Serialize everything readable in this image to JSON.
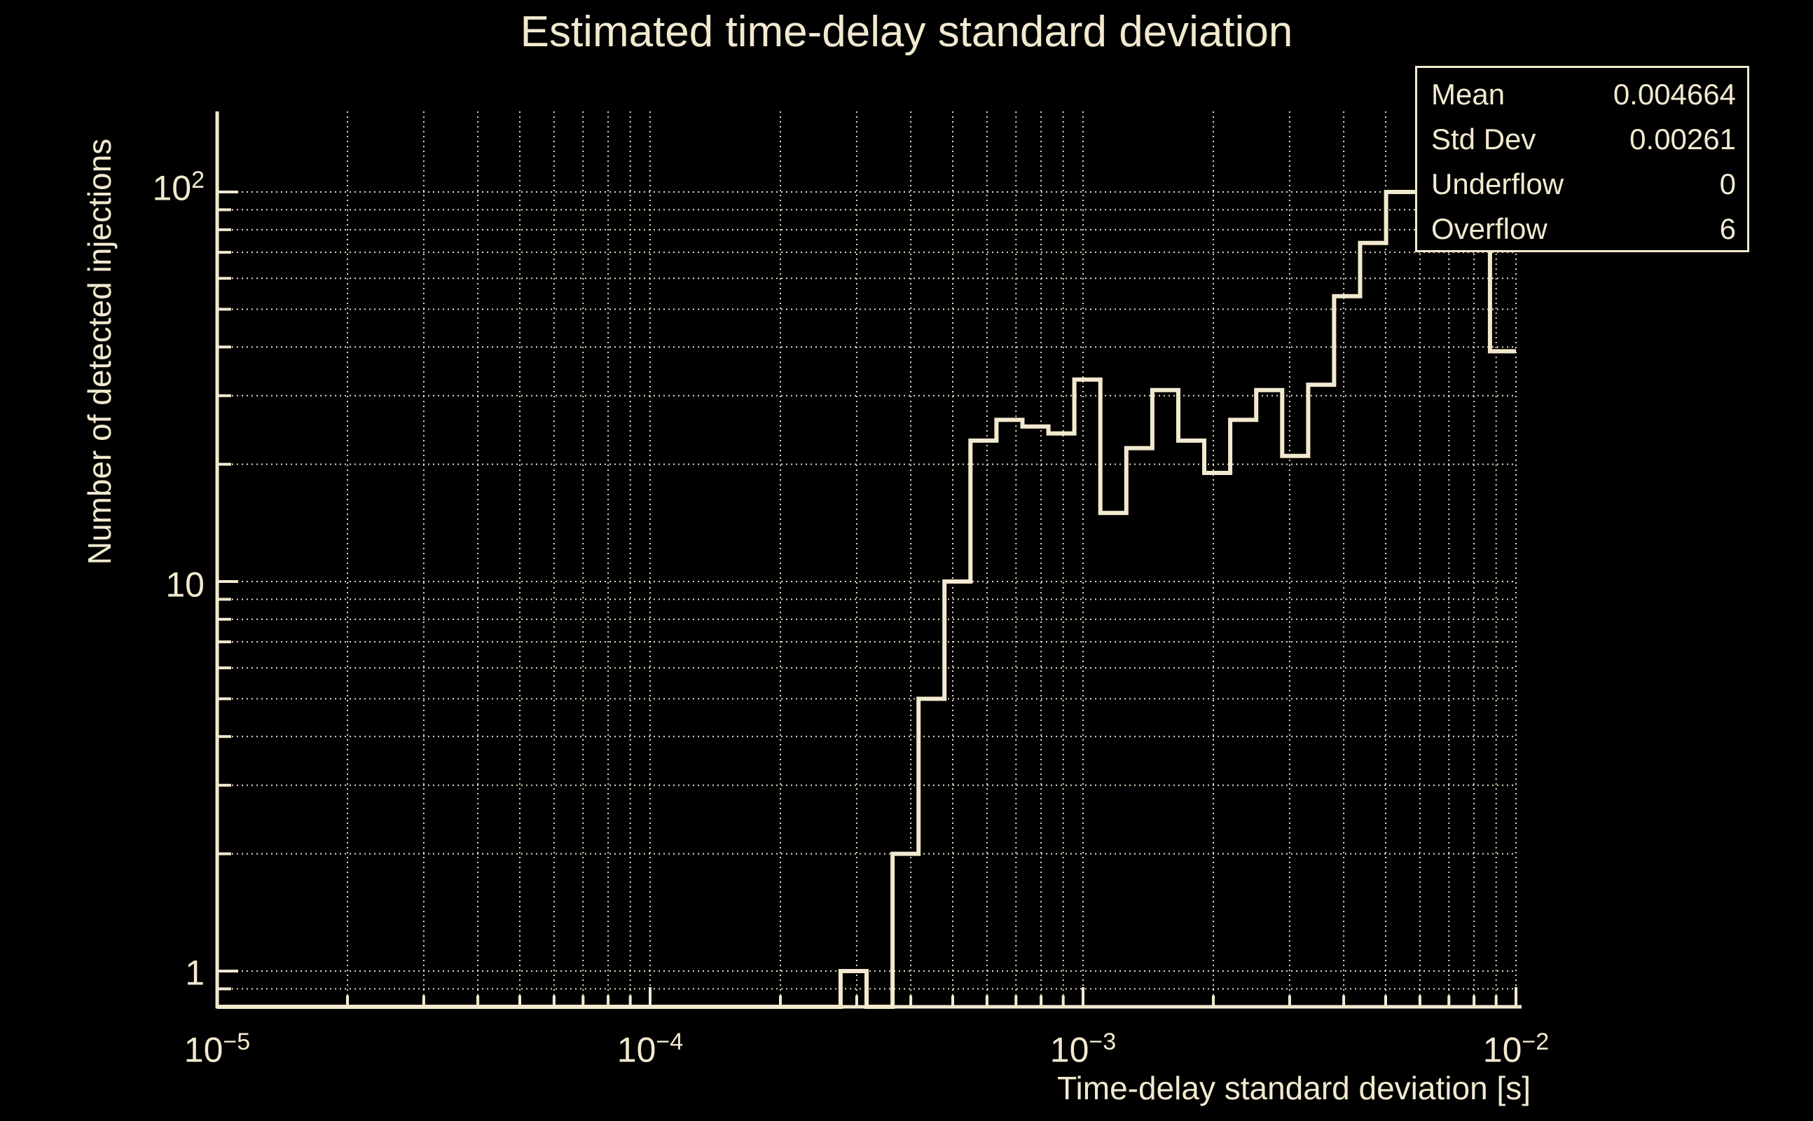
{
  "colors": {
    "background": "#000000",
    "foreground": "#f2e9cf"
  },
  "chart_data": {
    "type": "bar",
    "subtype": "step-histogram-log-log",
    "title": "Estimated time-delay standard deviation",
    "xlabel": "Time-delay standard deviation [s]",
    "ylabel": "Number of detected injections",
    "x_min": 1e-05,
    "x_max": 0.01,
    "x_scale": "log",
    "y_scale": "log",
    "ylim": [
      0.8,
      161
    ],
    "n_bins": 50,
    "bins_log_uniform": true,
    "counts": [
      0,
      0,
      0,
      0,
      0,
      0,
      0,
      0,
      0,
      0,
      0,
      0,
      0,
      0,
      0,
      0,
      0,
      0,
      0,
      0,
      0,
      0,
      0,
      0,
      1,
      0,
      2,
      5,
      10,
      23,
      26,
      25,
      24,
      33,
      15,
      22,
      31,
      23,
      19,
      26,
      31,
      21,
      32,
      54,
      74,
      100,
      100,
      100,
      100,
      39
    ],
    "bins_46_to_48_occluded_by_stats_box": true,
    "grid": "dotted, log minor divisions",
    "legend_position": "none"
  },
  "x_axis": {
    "ticks": [
      {
        "base": "10",
        "exp": "−5"
      },
      {
        "base": "10",
        "exp": "−4"
      },
      {
        "base": "10",
        "exp": "−3"
      },
      {
        "base": "10",
        "exp": "−2"
      }
    ]
  },
  "y_axis": {
    "ticks": [
      {
        "base": "10",
        "exp": "2"
      },
      {
        "base": "10",
        "exp": ""
      },
      {
        "base": "1",
        "exp": ""
      }
    ]
  },
  "stats_box": {
    "rows": [
      {
        "label": "Mean",
        "value": "0.004664"
      },
      {
        "label": "Std Dev",
        "value": "0.00261"
      },
      {
        "label": "Underflow",
        "value": "0"
      },
      {
        "label": "Overflow",
        "value": "6"
      }
    ]
  }
}
